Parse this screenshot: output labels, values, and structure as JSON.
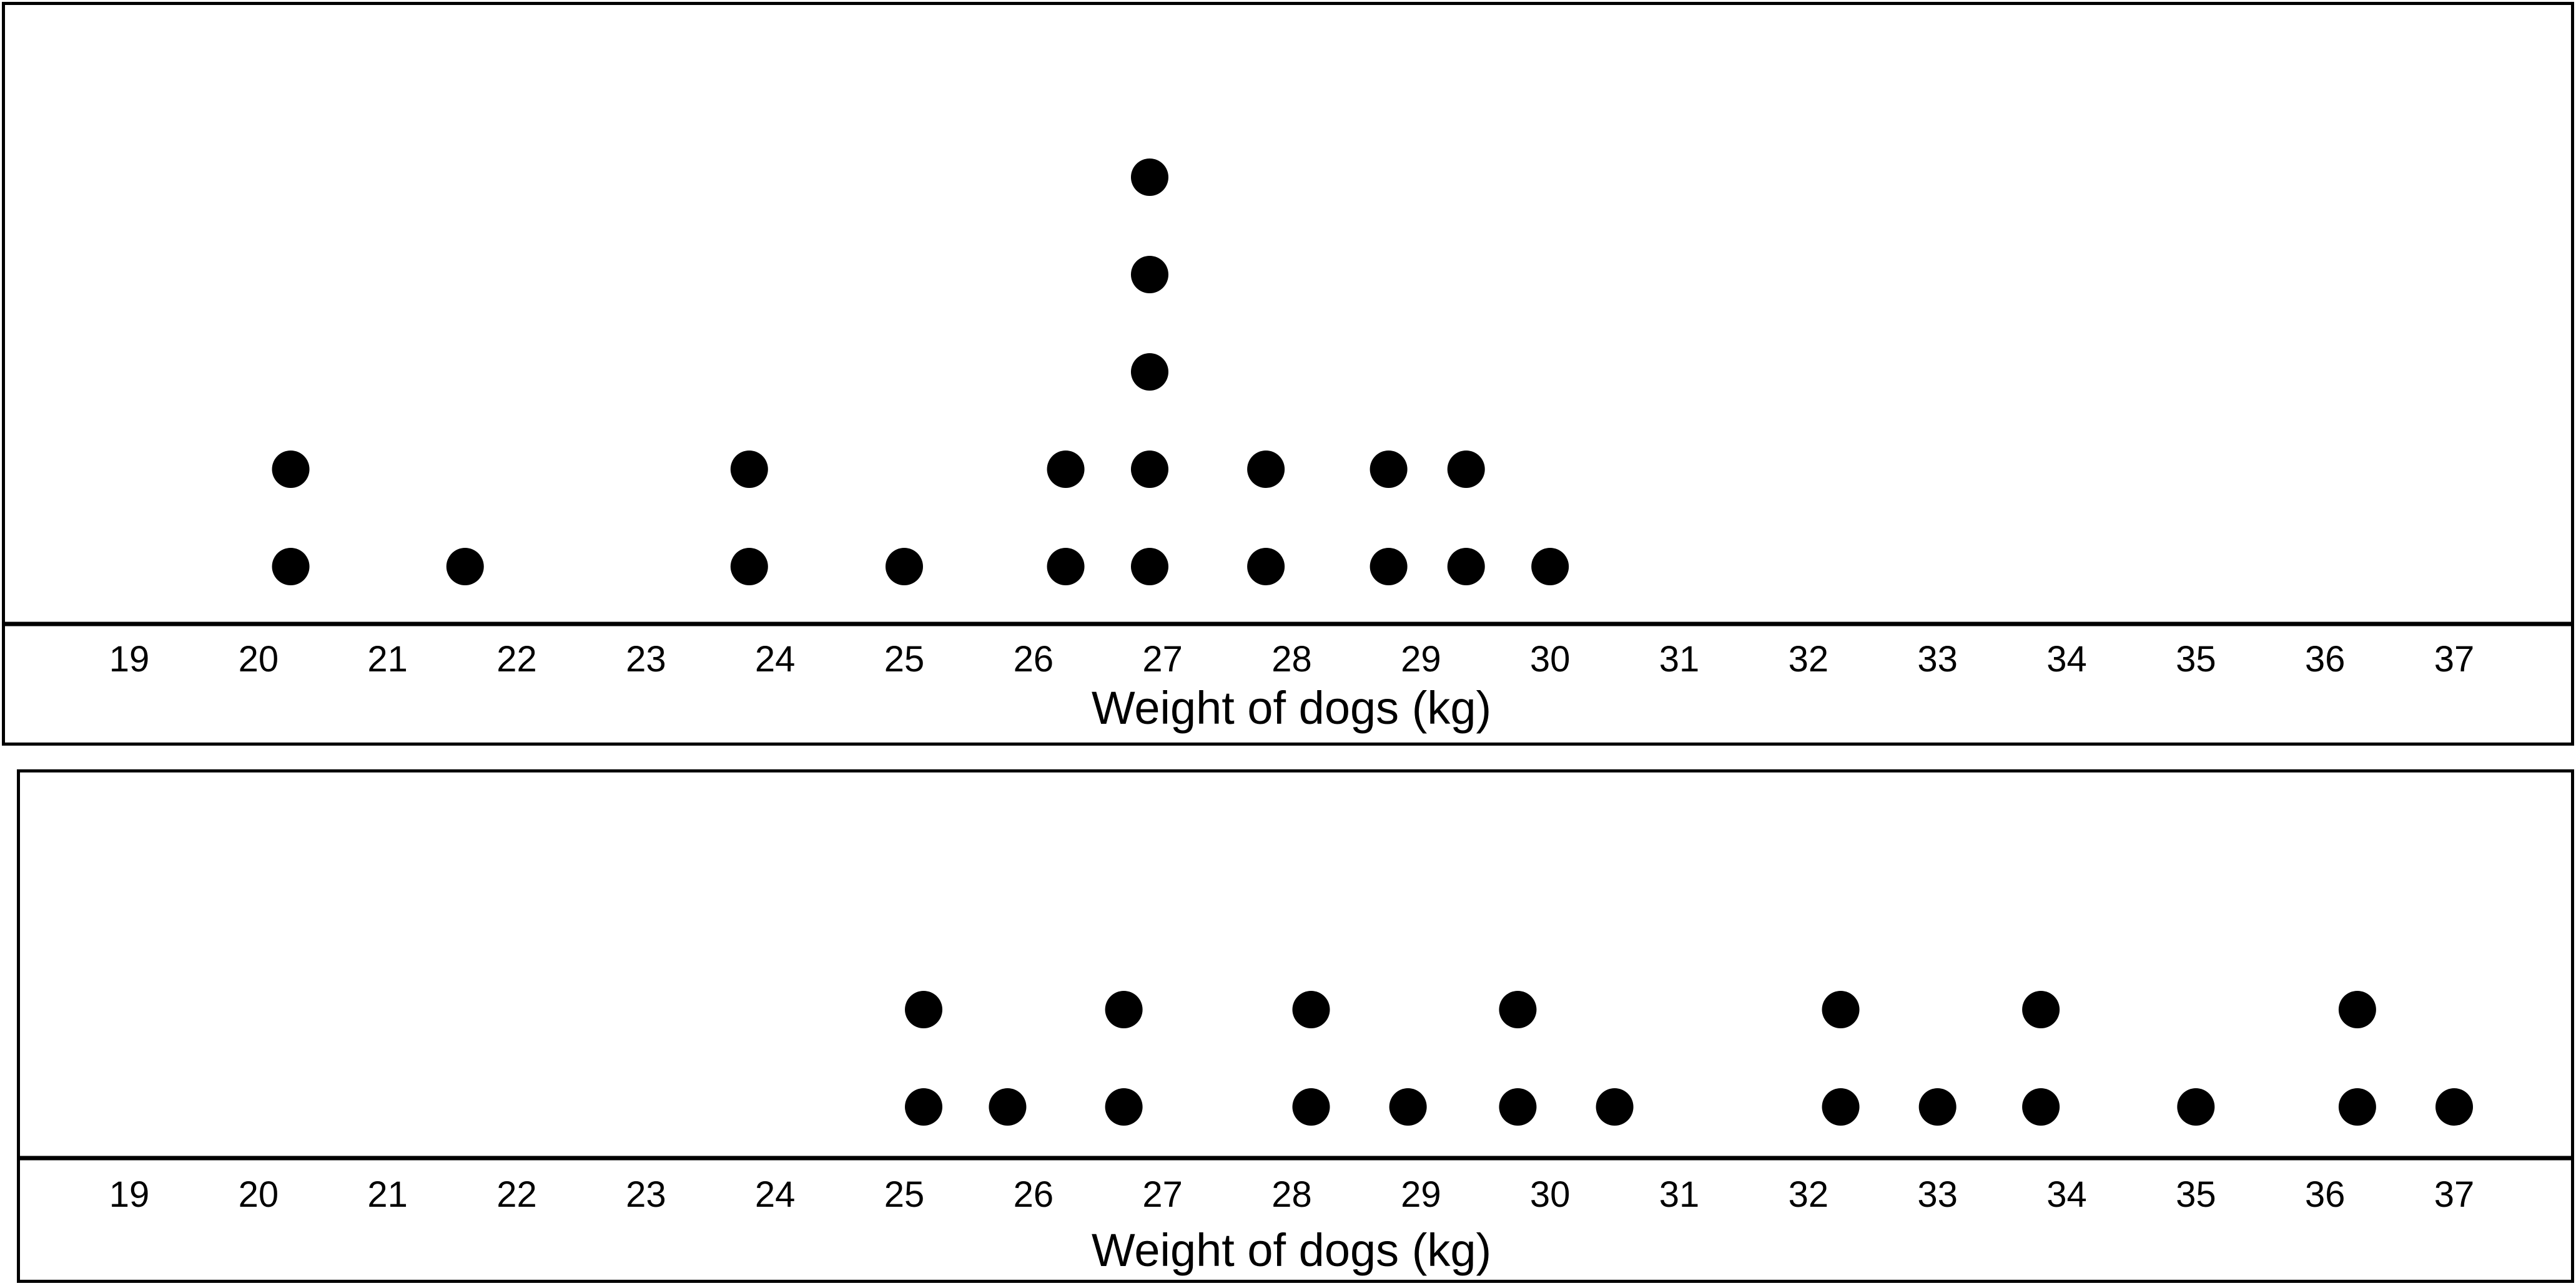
{
  "chart_data": [
    {
      "type": "dot-plot",
      "xlabel": "Weight of dogs (kg)",
      "ticks": [
        19,
        20,
        21,
        22,
        23,
        24,
        25,
        26,
        27,
        28,
        29,
        30,
        31,
        32,
        33,
        34,
        35,
        36,
        37
      ],
      "xlim": [
        18.2,
        37.7
      ],
      "grid": false,
      "dot_color": "#000000",
      "points": [
        {
          "x": 20.25,
          "count": 2
        },
        {
          "x": 21.6,
          "count": 1
        },
        {
          "x": 23.8,
          "count": 2
        },
        {
          "x": 25.0,
          "count": 1
        },
        {
          "x": 26.25,
          "count": 2
        },
        {
          "x": 26.9,
          "count": 5
        },
        {
          "x": 27.8,
          "count": 2
        },
        {
          "x": 28.75,
          "count": 2
        },
        {
          "x": 29.35,
          "count": 2
        },
        {
          "x": 30.0,
          "count": 1
        }
      ]
    },
    {
      "type": "dot-plot",
      "xlabel": "Weight of dogs (kg)",
      "ticks": [
        19,
        20,
        21,
        22,
        23,
        24,
        25,
        26,
        27,
        28,
        29,
        30,
        31,
        32,
        33,
        34,
        35,
        36,
        37
      ],
      "xlim": [
        18.2,
        37.7
      ],
      "grid": false,
      "dot_color": "#000000",
      "points": [
        {
          "x": 25.15,
          "count": 2
        },
        {
          "x": 25.8,
          "count": 1
        },
        {
          "x": 26.7,
          "count": 2
        },
        {
          "x": 28.15,
          "count": 2
        },
        {
          "x": 28.9,
          "count": 1
        },
        {
          "x": 29.75,
          "count": 2
        },
        {
          "x": 30.5,
          "count": 1
        },
        {
          "x": 32.25,
          "count": 2
        },
        {
          "x": 33.0,
          "count": 1
        },
        {
          "x": 33.8,
          "count": 2
        },
        {
          "x": 35.0,
          "count": 1
        },
        {
          "x": 36.25,
          "count": 2
        },
        {
          "x": 37.0,
          "count": 1
        }
      ]
    }
  ]
}
